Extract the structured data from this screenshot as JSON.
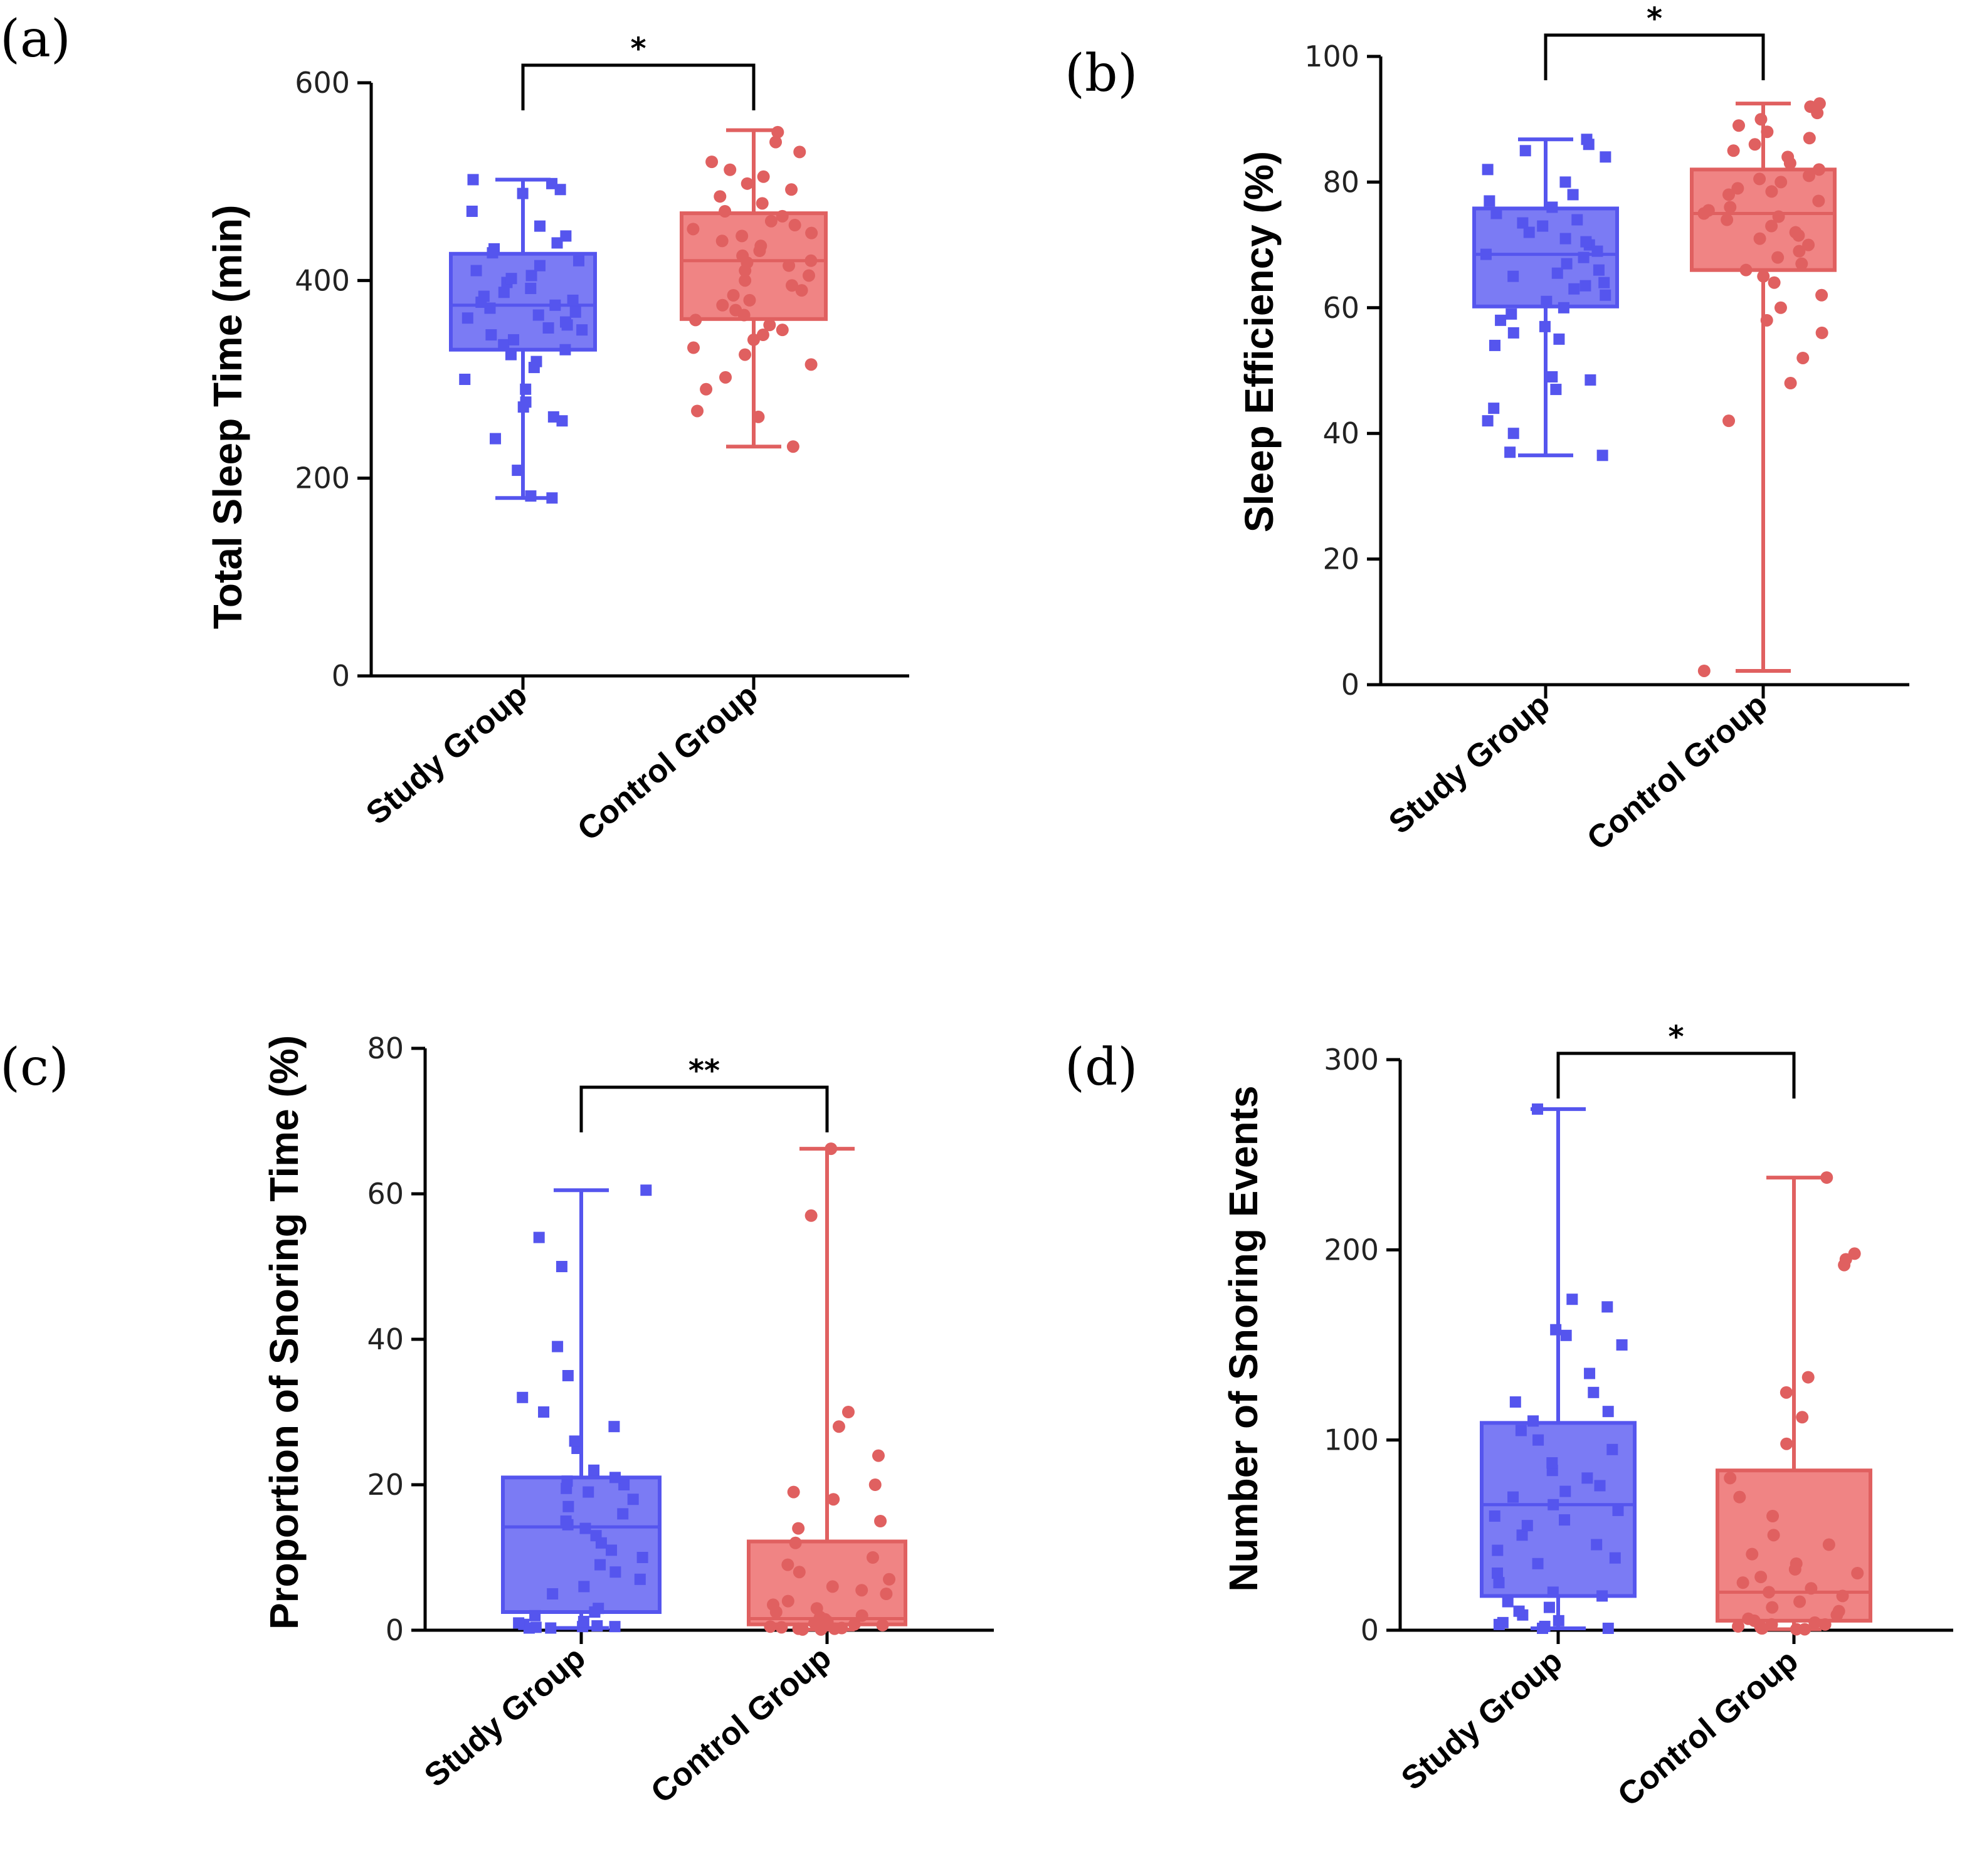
{
  "colors": {
    "study_fill": "#7b7bf4",
    "study_stroke": "#5555ee",
    "control_fill": "#f08484",
    "control_stroke": "#e06060",
    "axis": "#000000"
  },
  "chart_data": [
    {
      "type": "box",
      "panel_label": "(a)",
      "ylabel": "Total Sleep Time (min)",
      "ylim": [
        0,
        600
      ],
      "yticks": [
        0,
        200,
        400,
        600
      ],
      "categories": [
        "Study Group",
        "Control Group"
      ],
      "significance": "*",
      "series": [
        {
          "name": "Study Group",
          "marker": "square",
          "box": {
            "min": 180,
            "q1": 330,
            "median": 375,
            "q3": 427,
            "max": 502
          },
          "points": [
            180,
            182,
            208,
            240,
            258,
            262,
            272,
            277,
            290,
            300,
            312,
            318,
            325,
            330,
            335,
            340,
            345,
            350,
            352,
            355,
            358,
            362,
            365,
            368,
            372,
            375,
            378,
            380,
            384,
            388,
            392,
            398,
            402,
            405,
            410,
            415,
            420,
            428,
            432,
            438,
            445,
            455,
            470,
            488,
            492,
            498,
            502
          ]
        },
        {
          "name": "Control Group",
          "marker": "circle",
          "box": {
            "min": 232,
            "q1": 361,
            "median": 420,
            "q3": 468,
            "max": 552
          },
          "points": [
            232,
            262,
            268,
            290,
            302,
            315,
            325,
            332,
            340,
            345,
            350,
            355,
            360,
            365,
            370,
            375,
            380,
            385,
            390,
            395,
            400,
            405,
            410,
            415,
            418,
            420,
            425,
            430,
            435,
            440,
            445,
            448,
            452,
            456,
            460,
            465,
            470,
            478,
            485,
            492,
            498,
            505,
            512,
            520,
            530,
            540,
            550
          ]
        }
      ]
    },
    {
      "type": "box",
      "panel_label": "(b)",
      "ylabel": "Sleep Efficiency (%)",
      "ylim": [
        0,
        100
      ],
      "yticks": [
        0,
        20,
        40,
        60,
        80,
        100
      ],
      "categories": [
        "Study Group",
        "Control Group"
      ],
      "significance": "*",
      "series": [
        {
          "name": "Study Group",
          "marker": "square",
          "box": {
            "min": 36.5,
            "q1": 60.2,
            "median": 68.5,
            "q3": 75.8,
            "max": 86.8
          },
          "points": [
            36.5,
            37,
            40,
            42,
            44,
            47,
            48.5,
            49,
            54,
            55,
            56,
            57,
            58,
            59,
            60,
            61,
            62,
            63,
            63.5,
            64,
            65,
            65.5,
            66,
            67,
            68,
            68.5,
            69,
            70,
            70.5,
            71,
            72,
            73,
            73.5,
            74,
            75,
            76,
            77,
            78,
            80,
            82,
            84,
            85,
            86,
            86.8
          ]
        },
        {
          "name": "Control Group",
          "marker": "circle",
          "box": {
            "min": 2.2,
            "q1": 66,
            "median": 75,
            "q3": 82,
            "max": 92.5
          },
          "points": [
            2.2,
            42,
            48,
            52,
            56,
            58,
            60,
            62,
            64,
            65,
            66,
            67,
            68,
            69,
            70,
            71,
            71.5,
            72,
            73,
            74,
            74.5,
            75,
            75.5,
            76,
            77,
            78,
            78.5,
            79,
            80,
            80.5,
            81,
            82,
            83,
            84,
            85,
            86,
            87,
            88,
            89,
            90,
            91,
            92,
            92.5
          ]
        }
      ]
    },
    {
      "type": "box",
      "panel_label": "(c)",
      "ylabel": "Proportion of Snoring Time (%)",
      "ylim": [
        0,
        80
      ],
      "yticks": [
        0,
        20,
        40,
        60,
        80
      ],
      "categories": [
        "Study Group",
        "Control Group"
      ],
      "significance": "**",
      "series": [
        {
          "name": "Study Group",
          "marker": "square",
          "box": {
            "min": 0.3,
            "q1": 2.5,
            "median": 14.2,
            "q3": 21,
            "max": 60.5
          },
          "points": [
            0.3,
            0.3,
            0.4,
            0.5,
            0.5,
            0.6,
            0.8,
            1,
            1.2,
            2,
            2.5,
            3,
            5,
            6,
            7,
            8,
            9,
            10,
            11,
            12,
            13,
            14,
            14.5,
            15,
            16,
            17,
            18,
            19,
            19.5,
            20,
            20.5,
            21,
            22,
            25,
            26,
            28,
            30,
            32,
            35,
            39,
            50,
            54,
            60.5
          ]
        },
        {
          "name": "Control Group",
          "marker": "circle",
          "box": {
            "min": 0.1,
            "q1": 0.8,
            "median": 1.6,
            "q3": 12.2,
            "max": 66.2
          },
          "points": [
            0.1,
            0.1,
            0.2,
            0.2,
            0.3,
            0.4,
            0.5,
            0.6,
            0.7,
            0.8,
            1,
            1.2,
            1.5,
            1.8,
            2,
            2.5,
            3,
            3.5,
            4,
            5,
            5.5,
            6,
            7,
            8,
            9,
            10,
            12,
            14,
            15,
            18,
            19,
            20,
            24,
            28,
            30,
            57,
            66.2
          ]
        }
      ]
    },
    {
      "type": "box",
      "panel_label": "(d)",
      "ylabel": "Number of Snoring Events",
      "ylim": [
        0,
        300
      ],
      "yticks": [
        0,
        100,
        200,
        300
      ],
      "categories": [
        "Study Group",
        "Control Group"
      ],
      "significance": "*",
      "series": [
        {
          "name": "Study Group",
          "marker": "square",
          "box": {
            "min": 1,
            "q1": 18,
            "median": 66,
            "q3": 109,
            "max": 274
          },
          "points": [
            1,
            1,
            2,
            3,
            4,
            5,
            8,
            10,
            12,
            15,
            18,
            20,
            25,
            30,
            35,
            38,
            42,
            45,
            50,
            55,
            58,
            60,
            63,
            66,
            70,
            73,
            76,
            80,
            84,
            88,
            95,
            100,
            105,
            110,
            115,
            120,
            125,
            135,
            150,
            155,
            158,
            170,
            174,
            274
          ]
        },
        {
          "name": "Control Group",
          "marker": "circle",
          "box": {
            "min": 0.5,
            "q1": 5,
            "median": 20,
            "q3": 84,
            "max": 238
          },
          "points": [
            0.5,
            0.5,
            1,
            1,
            1.5,
            2,
            2,
            3,
            3,
            4,
            5,
            6,
            8,
            10,
            12,
            15,
            18,
            20,
            22,
            25,
            28,
            30,
            32,
            35,
            40,
            45,
            50,
            60,
            70,
            80,
            98,
            112,
            125,
            133,
            192,
            195,
            198,
            238
          ]
        }
      ]
    }
  ]
}
